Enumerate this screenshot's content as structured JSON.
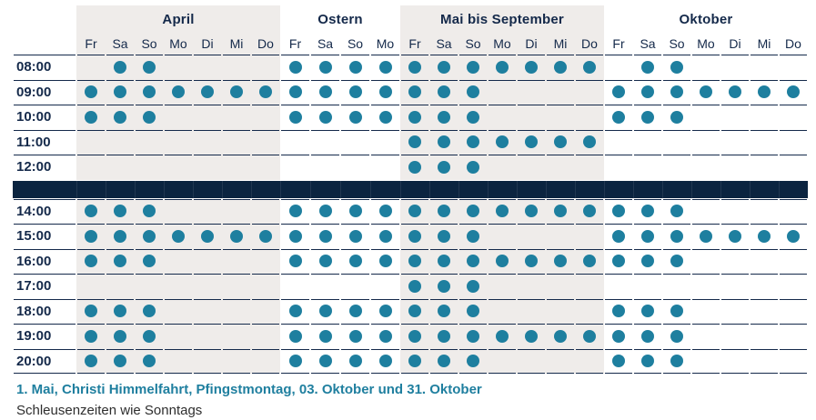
{
  "chart_data": {
    "type": "table",
    "title": "",
    "row_header_times": [
      "08:00",
      "09:00",
      "10:00",
      "11:00",
      "12:00",
      "14:00",
      "15:00",
      "16:00",
      "17:00",
      "18:00",
      "19:00",
      "20:00"
    ],
    "column_groups": [
      {
        "label": "April",
        "days": [
          "Fr",
          "Sa",
          "So",
          "Mo",
          "Di",
          "Mi",
          "Do"
        ],
        "shaded": true
      },
      {
        "label": "Ostern",
        "days": [
          "Fr",
          "Sa",
          "So",
          "Mo"
        ],
        "shaded": false
      },
      {
        "label": "Mai bis September",
        "days": [
          "Fr",
          "Sa",
          "So",
          "Mo",
          "Di",
          "Mi",
          "Do"
        ],
        "shaded": true
      },
      {
        "label": "Oktober",
        "days": [
          "Fr",
          "Sa",
          "So",
          "Mo",
          "Di",
          "Mi",
          "Do"
        ],
        "shaded": false
      }
    ],
    "rows": [
      {
        "time": "08:00",
        "dots": [
          [
            0,
            1,
            1,
            0,
            0,
            0,
            0
          ],
          [
            1,
            1,
            1,
            1
          ],
          [
            1,
            1,
            1,
            1,
            1,
            1,
            1
          ],
          [
            0,
            1,
            1,
            0,
            0,
            0,
            0
          ]
        ]
      },
      {
        "time": "09:00",
        "dots": [
          [
            1,
            1,
            1,
            1,
            1,
            1,
            1
          ],
          [
            1,
            1,
            1,
            1
          ],
          [
            1,
            1,
            1,
            0,
            0,
            0,
            0
          ],
          [
            1,
            1,
            1,
            1,
            1,
            1,
            1
          ]
        ]
      },
      {
        "time": "10:00",
        "dots": [
          [
            1,
            1,
            1,
            0,
            0,
            0,
            0
          ],
          [
            1,
            1,
            1,
            1
          ],
          [
            1,
            1,
            1,
            0,
            0,
            0,
            0
          ],
          [
            1,
            1,
            1,
            0,
            0,
            0,
            0
          ]
        ]
      },
      {
        "time": "11:00",
        "dots": [
          [
            0,
            0,
            0,
            0,
            0,
            0,
            0
          ],
          [
            0,
            0,
            0,
            0
          ],
          [
            1,
            1,
            1,
            1,
            1,
            1,
            1
          ],
          [
            0,
            0,
            0,
            0,
            0,
            0,
            0
          ]
        ]
      },
      {
        "time": "12:00",
        "dots": [
          [
            0,
            0,
            0,
            0,
            0,
            0,
            0
          ],
          [
            0,
            0,
            0,
            0
          ],
          [
            1,
            1,
            1,
            0,
            0,
            0,
            0
          ],
          [
            0,
            0,
            0,
            0,
            0,
            0,
            0
          ]
        ]
      },
      {
        "time": "14:00",
        "dots": [
          [
            1,
            1,
            1,
            0,
            0,
            0,
            0
          ],
          [
            1,
            1,
            1,
            1
          ],
          [
            1,
            1,
            1,
            1,
            1,
            1,
            1
          ],
          [
            1,
            1,
            1,
            0,
            0,
            0,
            0
          ]
        ]
      },
      {
        "time": "15:00",
        "dots": [
          [
            1,
            1,
            1,
            1,
            1,
            1,
            1
          ],
          [
            1,
            1,
            1,
            1
          ],
          [
            1,
            1,
            1,
            0,
            0,
            0,
            0
          ],
          [
            1,
            1,
            1,
            1,
            1,
            1,
            1
          ]
        ]
      },
      {
        "time": "16:00",
        "dots": [
          [
            1,
            1,
            1,
            0,
            0,
            0,
            0
          ],
          [
            1,
            1,
            1,
            1
          ],
          [
            1,
            1,
            1,
            1,
            1,
            1,
            1
          ],
          [
            1,
            1,
            1,
            0,
            0,
            0,
            0
          ]
        ]
      },
      {
        "time": "17:00",
        "dots": [
          [
            0,
            0,
            0,
            0,
            0,
            0,
            0
          ],
          [
            0,
            0,
            0,
            0
          ],
          [
            1,
            1,
            1,
            0,
            0,
            0,
            0
          ],
          [
            0,
            0,
            0,
            0,
            0,
            0,
            0
          ]
        ]
      },
      {
        "time": "18:00",
        "dots": [
          [
            1,
            1,
            1,
            0,
            0,
            0,
            0
          ],
          [
            1,
            1,
            1,
            1
          ],
          [
            1,
            1,
            1,
            0,
            0,
            0,
            0
          ],
          [
            1,
            1,
            1,
            0,
            0,
            0,
            0
          ]
        ]
      },
      {
        "time": "19:00",
        "dots": [
          [
            1,
            1,
            1,
            0,
            0,
            0,
            0
          ],
          [
            1,
            1,
            1,
            1
          ],
          [
            1,
            1,
            1,
            1,
            1,
            1,
            1
          ],
          [
            1,
            1,
            1,
            0,
            0,
            0,
            0
          ]
        ]
      },
      {
        "time": "20:00",
        "dots": [
          [
            1,
            1,
            1,
            0,
            0,
            0,
            0
          ],
          [
            1,
            1,
            1,
            1
          ],
          [
            1,
            1,
            1,
            0,
            0,
            0,
            0
          ],
          [
            1,
            1,
            1,
            0,
            0,
            0,
            0
          ]
        ]
      }
    ],
    "break_bar_after_row": "12:00",
    "layout_hints": {
      "dot_means": "marked slot",
      "break_bar": "full-width dark bar between 12:00 and 14:00"
    }
  },
  "footnote": {
    "line1": "1. Mai, Christi Himmelfahrt, Pfingstmontag, 03. Oktober und 31. Oktober",
    "line2": "Schleusenzeiten wie Sonntags"
  },
  "colors": {
    "dot": "#1e7f9f",
    "navy_text": "#14294a",
    "bar": "#0b2440",
    "shaded_column_bg": "#efecea",
    "accent_text": "#1f7f9f",
    "note_text": "#2e2e2e"
  }
}
